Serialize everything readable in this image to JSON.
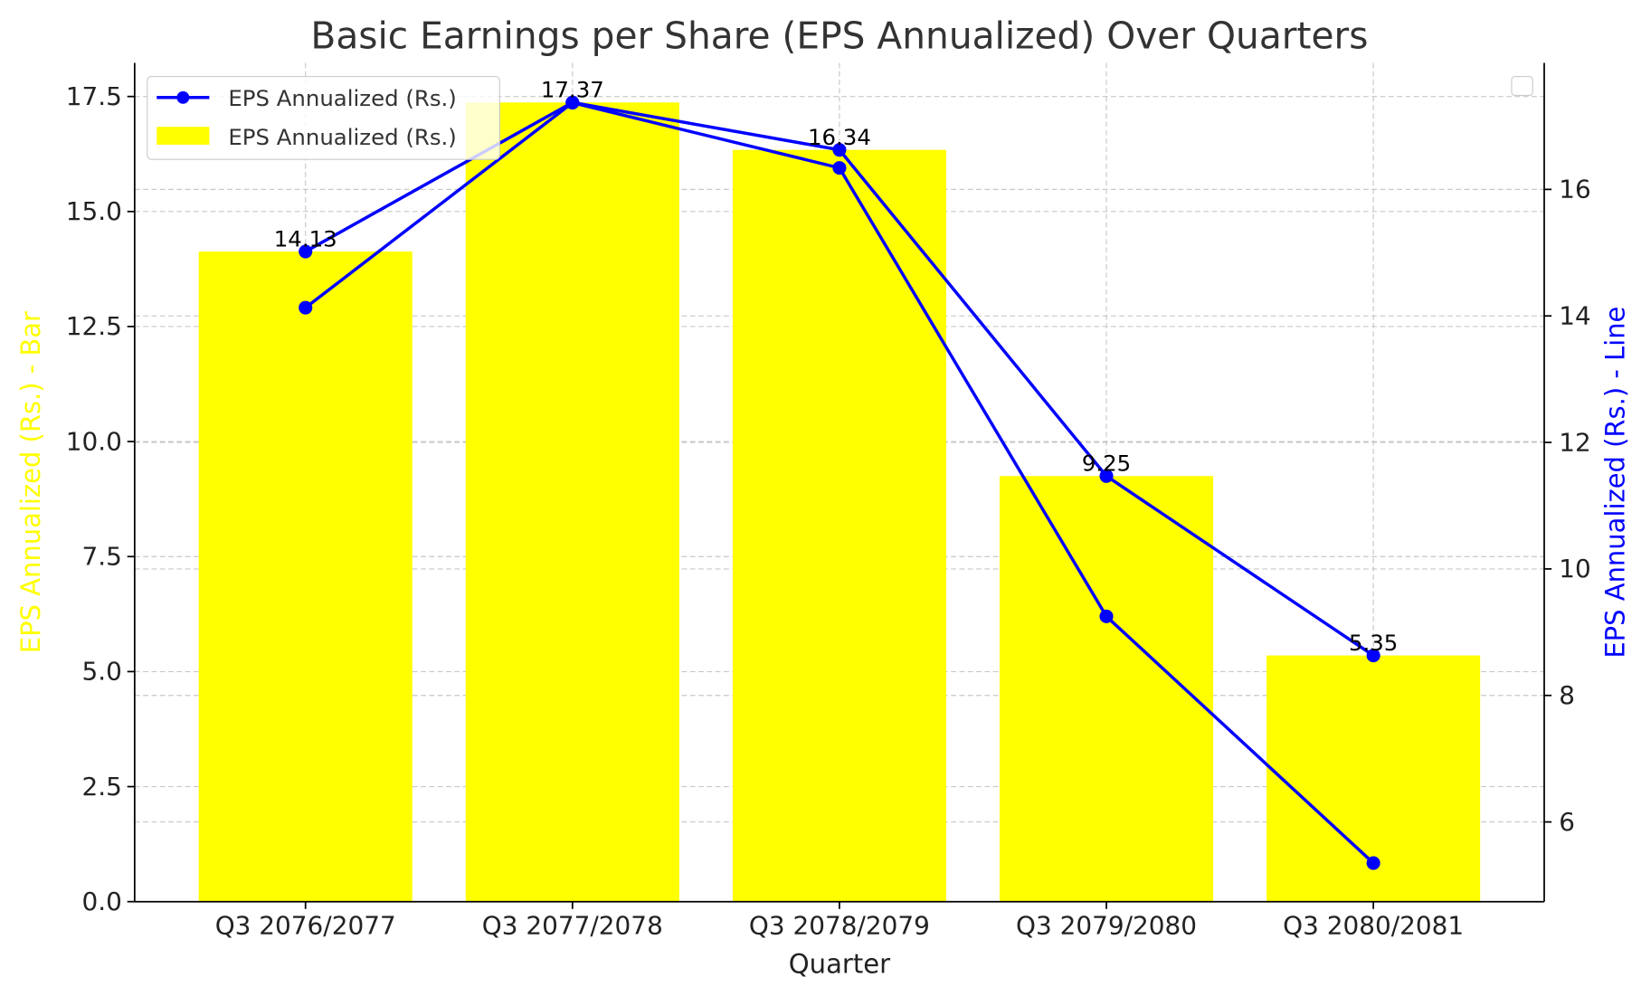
{
  "chart_data": {
    "type": "bar+line",
    "title": "Basic Earnings per Share (EPS Annualized) Over Quarters",
    "xlabel": "Quarter",
    "ylabel_left": "EPS Annualized (Rs.) - Bar",
    "ylabel_right": "EPS Annualized (Rs.) - Line",
    "categories": [
      "Q3 2076/2077",
      "Q3 2077/2078",
      "Q3 2078/2079",
      "Q3 2079/2080",
      "Q3 2080/2081"
    ],
    "ylim_left": [
      0,
      18.23
    ],
    "ylim_right": [
      4.74,
      18.0
    ],
    "yticks_left": [
      "0.0",
      "2.5",
      "5.0",
      "7.5",
      "10.0",
      "12.5",
      "15.0",
      "17.5"
    ],
    "yticks_right": [
      "6",
      "8",
      "10",
      "12",
      "14",
      "16"
    ],
    "grid": true,
    "legend_position": "top-left",
    "series": [
      {
        "name": "EPS Annualized (Rs.)",
        "type": "bar",
        "axis": "left",
        "color": "#ffff00",
        "values": [
          14.13,
          17.37,
          16.34,
          9.25,
          5.35
        ],
        "labels": [
          "14.13",
          "17.37",
          "16.34",
          "9.25",
          "5.35"
        ]
      },
      {
        "name": "EPS Annualized (Rs.)",
        "type": "line",
        "axis": "left",
        "color": "#0000ff",
        "values": [
          14.13,
          17.37,
          16.34,
          9.25,
          5.35
        ]
      },
      {
        "name": "EPS Annualized (Rs.)",
        "type": "line",
        "axis": "right",
        "color": "#0000ff",
        "values": [
          14.13,
          17.37,
          16.34,
          9.25,
          5.35
        ]
      }
    ],
    "legend": [
      {
        "label": "EPS Annualized (Rs.)",
        "kind": "line"
      },
      {
        "label": "EPS Annualized (Rs.)",
        "kind": "bar"
      }
    ]
  }
}
